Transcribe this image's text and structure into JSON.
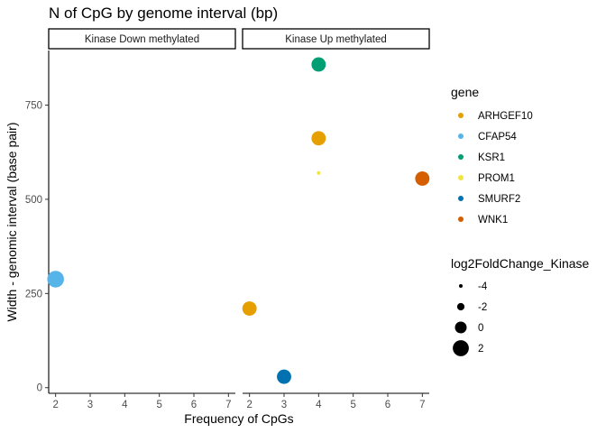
{
  "chart_data": {
    "type": "scatter",
    "title": "N of CpG by genome interval (bp)",
    "xlabel": "Frequency of CpGs",
    "ylabel": "Width - genomic interval (base pair)",
    "xlim": [
      1.8,
      7.2
    ],
    "ylim": [
      -15,
      895
    ],
    "x_ticks": [
      2,
      3,
      4,
      5,
      6,
      7
    ],
    "y_ticks": [
      0,
      250,
      500,
      750
    ],
    "grid": false,
    "facets": [
      "Kinase Down methylated",
      "Kinase Up methylated"
    ],
    "legend_position": "right",
    "color_legend": {
      "title": "gene",
      "entries": [
        {
          "label": "ARHGEF10",
          "color": "#E69F00"
        },
        {
          "label": "CFAP54",
          "color": "#56B4E9"
        },
        {
          "label": "KSR1",
          "color": "#009E73"
        },
        {
          "label": "PROM1",
          "color": "#F0E442"
        },
        {
          "label": "SMURF2",
          "color": "#0072B2"
        },
        {
          "label": "WNK1",
          "color": "#D55E00"
        }
      ]
    },
    "size_legend": {
      "title": "log2FoldChange_Kinase",
      "entries": [
        {
          "label": "-4",
          "value": -4
        },
        {
          "label": "-2",
          "value": -2
        },
        {
          "label": "0",
          "value": 0
        },
        {
          "label": "2",
          "value": 2
        }
      ]
    },
    "points": [
      {
        "facet": 0,
        "gene": "CFAP54",
        "x": 2,
        "y": 288,
        "log2fc": 2.3
      },
      {
        "facet": 1,
        "gene": "KSR1",
        "x": 4,
        "y": 858,
        "log2fc": 1.2
      },
      {
        "facet": 1,
        "gene": "ARHGEF10",
        "x": 4,
        "y": 662,
        "log2fc": 1.2
      },
      {
        "facet": 1,
        "gene": "PROM1",
        "x": 4,
        "y": 570,
        "log2fc": -5.5
      },
      {
        "facet": 1,
        "gene": "WNK1",
        "x": 7,
        "y": 555,
        "log2fc": 1.2
      },
      {
        "facet": 1,
        "gene": "ARHGEF10",
        "x": 2,
        "y": 210,
        "log2fc": 1.2
      },
      {
        "facet": 1,
        "gene": "SMURF2",
        "x": 3,
        "y": 29,
        "log2fc": 1.2
      }
    ]
  }
}
